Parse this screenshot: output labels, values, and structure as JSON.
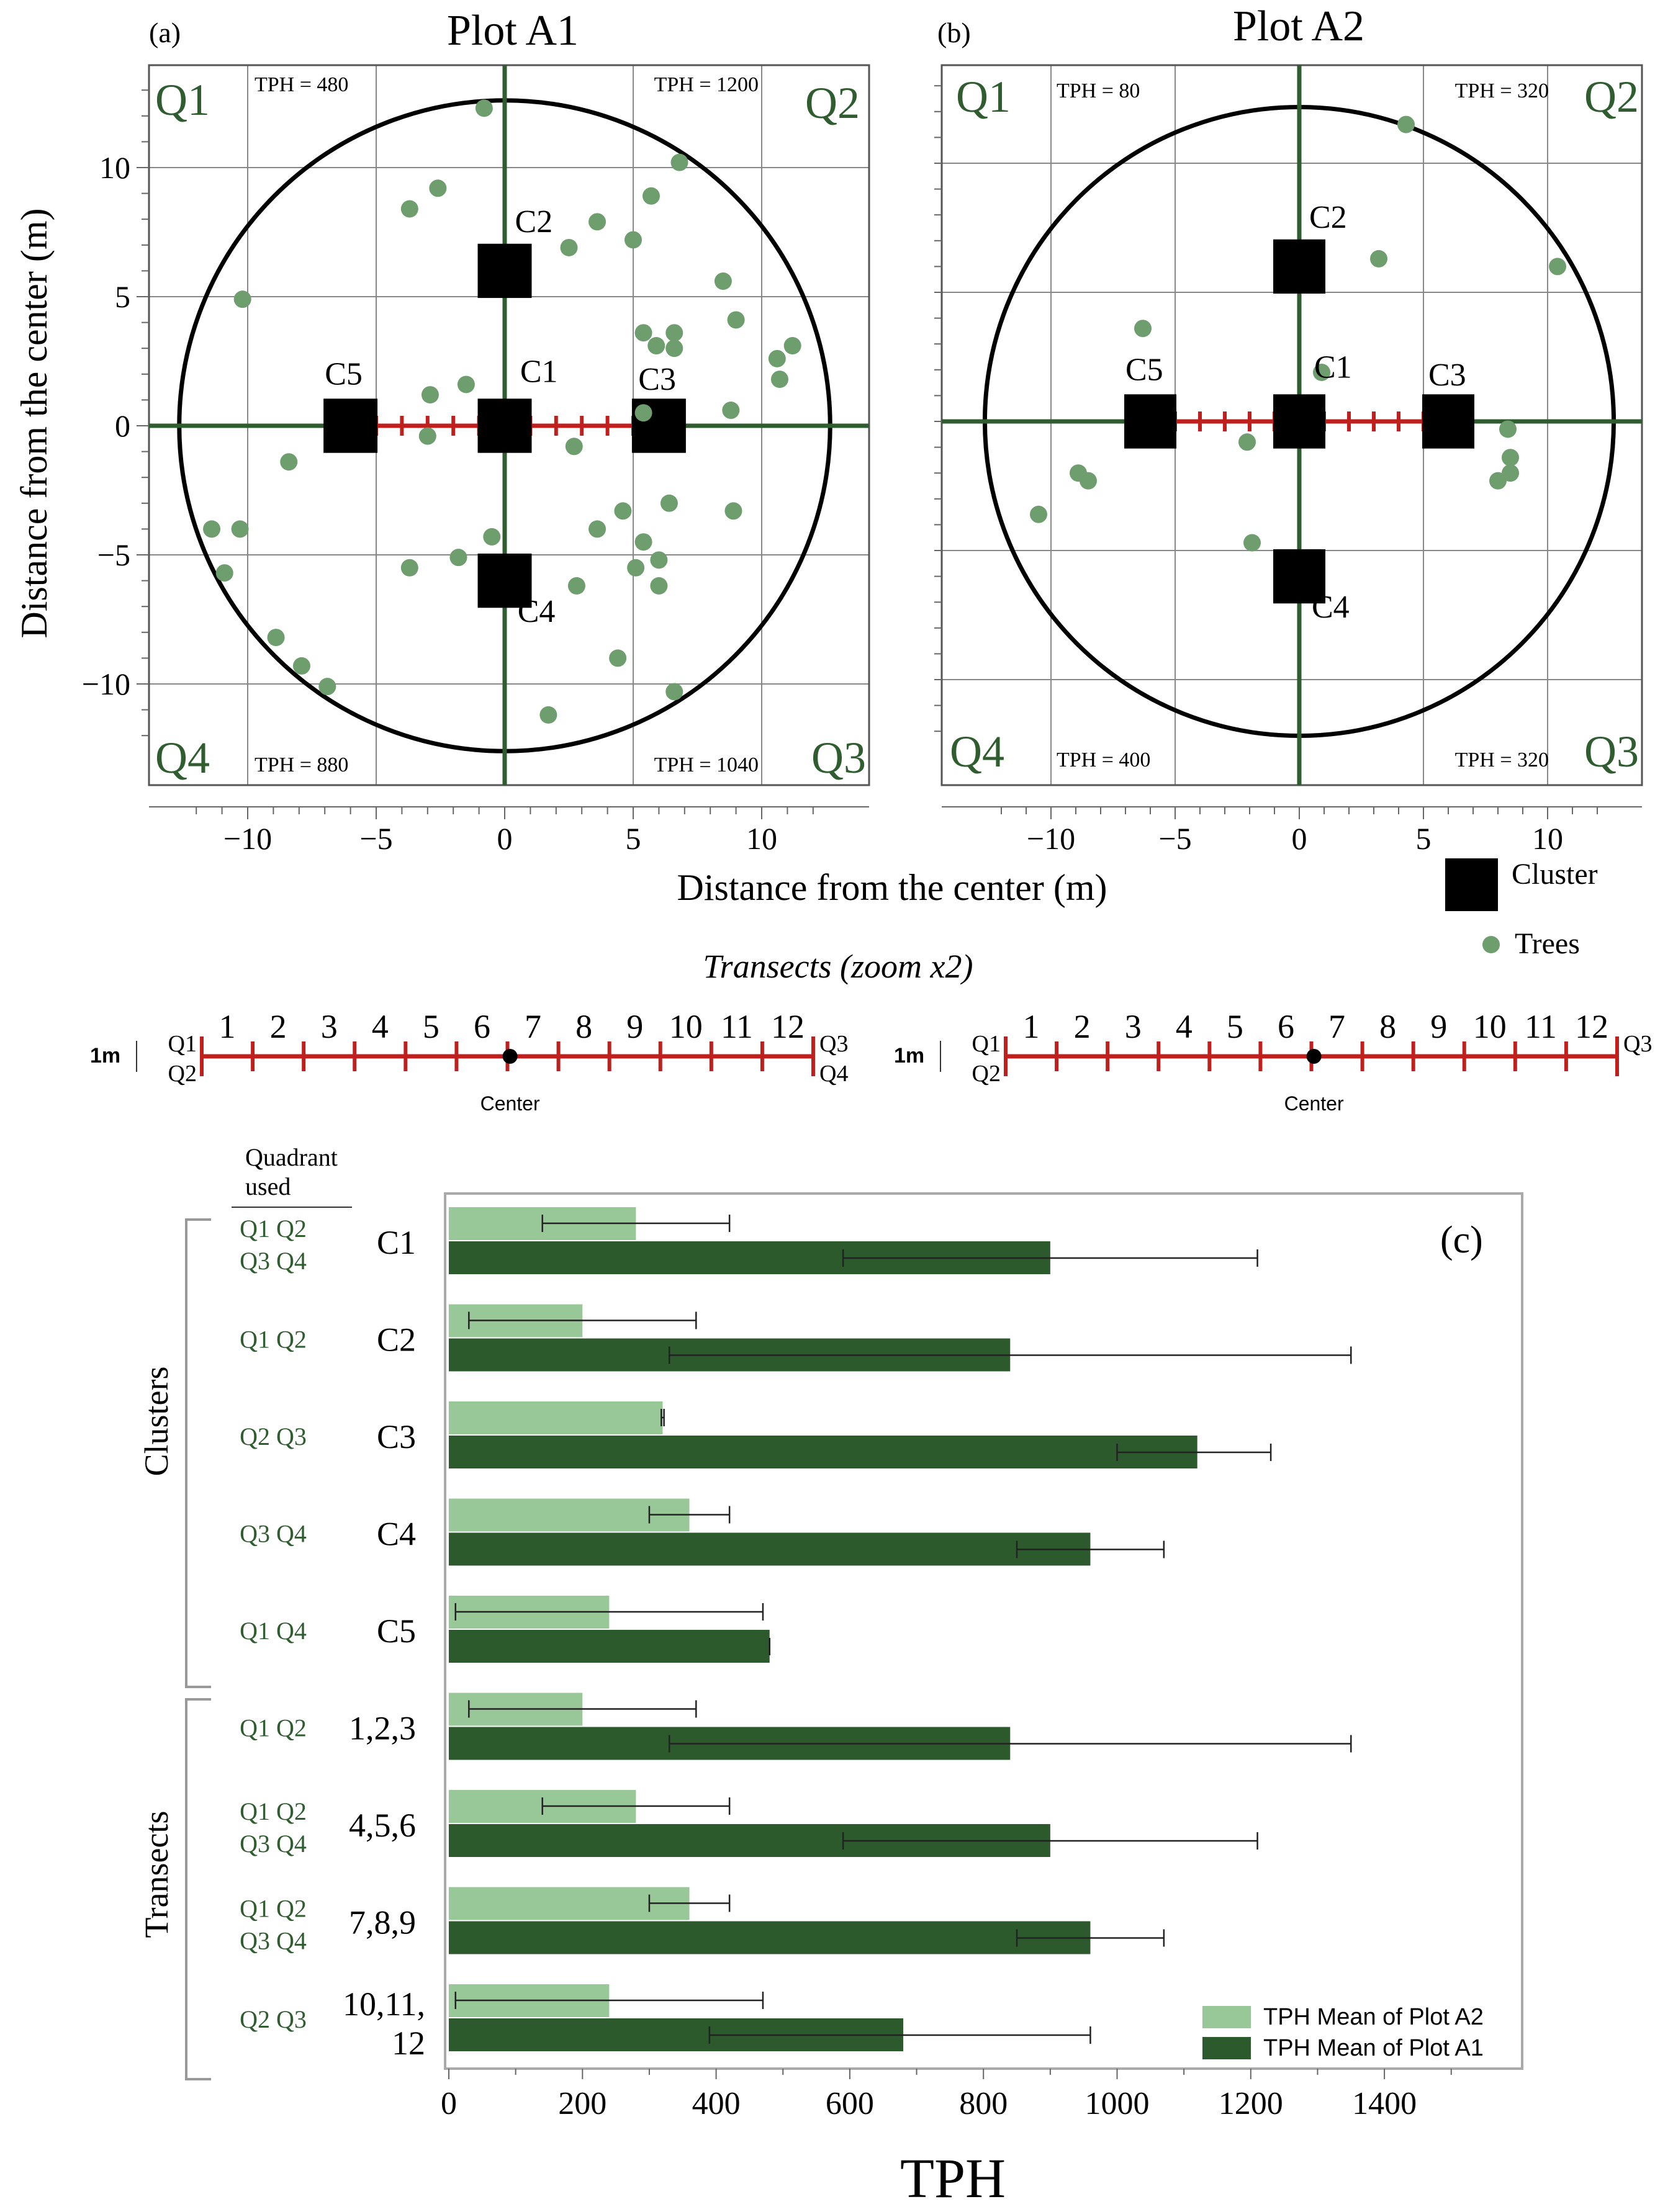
{
  "colors": {
    "dark_green": "#2d5a2d",
    "light_green": "#98c898",
    "tree_green": "#6e9e6e",
    "axis_green": "#2f5d2f",
    "red": "#c0201d",
    "label_green": "#2f5d2f"
  },
  "panels": [
    {
      "tag": "(a)",
      "title": "Plot A1",
      "quadrant_labels": [
        "Q1",
        "Q2",
        "Q3",
        "Q4"
      ],
      "tph": {
        "Q1": "TPH = 480",
        "Q2": "TPH = 1200",
        "Q3": "TPH = 1040",
        "Q4": "TPH = 880"
      },
      "clusters": [
        {
          "name": "C1",
          "x": 0,
          "y": 0
        },
        {
          "name": "C2",
          "x": 0,
          "y": 6
        },
        {
          "name": "C3",
          "x": 6,
          "y": 0
        },
        {
          "name": "C4",
          "x": 0,
          "y": -6
        },
        {
          "name": "C5",
          "x": -6,
          "y": 0
        }
      ],
      "trees": [
        [
          -0.8,
          12.3
        ],
        [
          -2.6,
          9.2
        ],
        [
          -3.7,
          8.4
        ],
        [
          2.5,
          6.9
        ],
        [
          3.6,
          7.9
        ],
        [
          5.0,
          7.2
        ],
        [
          5.7,
          8.9
        ],
        [
          6.8,
          10.2
        ],
        [
          -10.2,
          4.9
        ],
        [
          8.5,
          5.6
        ],
        [
          9.0,
          4.1
        ],
        [
          5.4,
          3.6
        ],
        [
          5.9,
          3.1
        ],
        [
          6.6,
          3.6
        ],
        [
          6.6,
          3.0
        ],
        [
          11.2,
          3.1
        ],
        [
          10.6,
          2.6
        ],
        [
          10.7,
          1.8
        ],
        [
          -1.5,
          1.6
        ],
        [
          -2.9,
          1.2
        ],
        [
          5.4,
          0.5
        ],
        [
          8.8,
          0.6
        ],
        [
          -8.4,
          -1.4
        ],
        [
          -3.0,
          -0.4
        ],
        [
          2.7,
          -0.8
        ],
        [
          6.4,
          -3.0
        ],
        [
          4.6,
          -3.3
        ],
        [
          8.9,
          -3.3
        ],
        [
          -0.5,
          -4.3
        ],
        [
          3.6,
          -4.0
        ],
        [
          5.4,
          -4.5
        ],
        [
          -11.4,
          -4.0
        ],
        [
          -10.3,
          -4.0
        ],
        [
          -1.8,
          -5.1
        ],
        [
          -3.7,
          -5.5
        ],
        [
          5.1,
          -5.5
        ],
        [
          6.0,
          -5.2
        ],
        [
          6.0,
          -6.2
        ],
        [
          2.8,
          -6.2
        ],
        [
          -10.9,
          -5.7
        ],
        [
          -8.9,
          -8.2
        ],
        [
          -7.9,
          -9.3
        ],
        [
          -6.9,
          -10.1
        ],
        [
          4.4,
          -9.0
        ],
        [
          6.6,
          -10.3
        ],
        [
          1.7,
          -11.2
        ]
      ]
    },
    {
      "tag": "(b)",
      "title": "Plot A2",
      "quadrant_labels": [
        "Q1",
        "Q2",
        "Q3",
        "Q4"
      ],
      "tph": {
        "Q1": "TPH = 80",
        "Q2": "TPH = 320",
        "Q3": "TPH = 320",
        "Q4": "TPH = 400"
      },
      "clusters": [
        {
          "name": "C1",
          "x": 0,
          "y": 0
        },
        {
          "name": "C2",
          "x": 0,
          "y": 6
        },
        {
          "name": "C3",
          "x": 6,
          "y": 0
        },
        {
          "name": "C4",
          "x": 0,
          "y": -6
        },
        {
          "name": "C5",
          "x": -6,
          "y": 0
        }
      ],
      "trees": [
        [
          4.3,
          11.5
        ],
        [
          10.4,
          6.0
        ],
        [
          3.2,
          6.3
        ],
        [
          -6.3,
          3.6
        ],
        [
          0.9,
          1.9
        ],
        [
          -2.1,
          -0.8
        ],
        [
          8.4,
          -0.3
        ],
        [
          8.5,
          -1.4
        ],
        [
          8.5,
          -2.0
        ],
        [
          8.0,
          -2.3
        ],
        [
          -8.9,
          -2.0
        ],
        [
          -8.5,
          -2.3
        ],
        [
          -10.5,
          -3.6
        ],
        [
          -1.9,
          -4.7
        ]
      ]
    }
  ],
  "map_axes": {
    "xlabel": "Distance from the center (m)",
    "ylabel": "Distance from the center (m)",
    "xlim": [
      -13.5,
      13.5
    ],
    "ylim": [
      -13.5,
      14.0
    ],
    "x_ticks": [
      "−10",
      "−5",
      "0",
      "5",
      "10"
    ],
    "y_ticks": [
      "10",
      "5",
      "0",
      "−5",
      "−10"
    ],
    "circle_radius": 12.6
  },
  "map_legend": {
    "cluster": "Cluster",
    "trees": "Trees"
  },
  "transects": {
    "title": "Transects (zoom x2)",
    "scale_label": "1m",
    "numbers": [
      "1",
      "2",
      "3",
      "4",
      "5",
      "6",
      "7",
      "8",
      "9",
      "10",
      "11",
      "12"
    ],
    "left_top": "Q1",
    "left_bottom": "Q2",
    "right_top_a": "Q3",
    "right_bottom_a": "Q4",
    "right_top_b": "Q3",
    "center_label": "Center"
  },
  "chart_data": {
    "type": "bar",
    "orientation": "horizontal",
    "tag": "(c)",
    "xlabel": "TPH",
    "xlim": [
      -5,
      1600
    ],
    "x_ticks": [
      0,
      200,
      400,
      600,
      800,
      1000,
      1200,
      1400
    ],
    "quadrant_header": "Quadrant used",
    "group_labels": {
      "clusters": "Clusters",
      "transects": "Transects"
    },
    "categories": [
      "C1",
      "C2",
      "C3",
      "C4",
      "C5",
      "1,2,3",
      "4,5,6",
      "7,8,9",
      "10,11,12"
    ],
    "category_lines": [
      [
        "C1"
      ],
      [
        "C2"
      ],
      [
        "C3"
      ],
      [
        "C4"
      ],
      [
        "C5"
      ],
      [
        "1,2,3"
      ],
      [
        "4,5,6"
      ],
      [
        "7,8,9"
      ],
      [
        "10,11,",
        "12"
      ]
    ],
    "quadrants_used": [
      [
        "Q1 Q2",
        "Q3 Q4"
      ],
      [
        "Q1 Q2"
      ],
      [
        "Q2 Q3"
      ],
      [
        "Q3 Q4"
      ],
      [
        "Q1 Q4"
      ],
      [
        "Q1 Q2"
      ],
      [
        "Q1 Q2",
        "Q3 Q4"
      ],
      [
        "Q1 Q2",
        "Q3 Q4"
      ],
      [
        "Q2 Q3"
      ]
    ],
    "series": [
      {
        "name": "TPH Mean of Plot A2",
        "color": "#98c898",
        "values": [
          280,
          200,
          320,
          360,
          240,
          200,
          280,
          360,
          240
        ],
        "err_low": [
          140,
          30,
          318,
          300,
          10,
          30,
          140,
          300,
          10
        ],
        "err_high": [
          420,
          370,
          322,
          420,
          470,
          370,
          420,
          420,
          470
        ]
      },
      {
        "name": "TPH Mean of Plot A1",
        "color": "#2d5a2d",
        "values": [
          900,
          840,
          1120,
          960,
          480,
          840,
          900,
          960,
          680
        ],
        "err_low": [
          590,
          330,
          1000,
          850,
          480,
          330,
          590,
          850,
          390
        ],
        "err_high": [
          1210,
          1350,
          1230,
          1070,
          480,
          1350,
          1210,
          1070,
          960
        ]
      }
    ]
  }
}
